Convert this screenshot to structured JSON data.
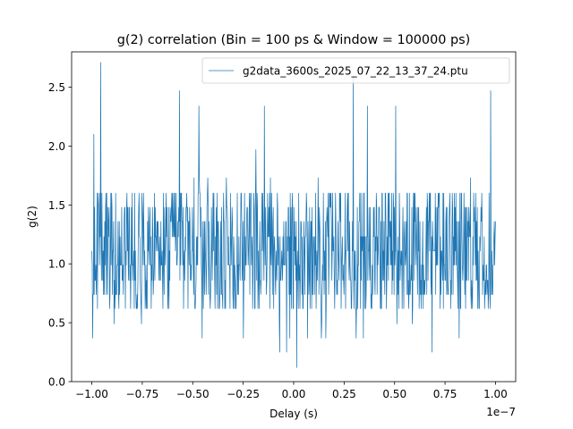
{
  "colors": {
    "series": "#1f77b4",
    "axis": "#000000",
    "background": "#ffffff",
    "legend_border": "#cccccc"
  },
  "chart_data": {
    "type": "line",
    "title": "g(2) correlation (Bin = 100 ps & Window = 100000 ps)",
    "xlabel": "Delay (s)",
    "ylabel": "g(2)",
    "x_offset_label": "1e−7",
    "xlim": [
      -1.1,
      1.1
    ],
    "ylim": [
      0.0,
      2.8
    ],
    "x_ticks": [
      -1.0,
      -0.75,
      -0.5,
      -0.25,
      0.0,
      0.25,
      0.5,
      0.75,
      1.0
    ],
    "x_tick_labels": [
      "−1.00",
      "−0.75",
      "−0.50",
      "−0.25",
      "0.00",
      "0.25",
      "0.50",
      "0.75",
      "1.00"
    ],
    "y_ticks": [
      0.0,
      0.5,
      1.0,
      1.5,
      2.0,
      2.5
    ],
    "y_tick_labels": [
      "0.0",
      "0.5",
      "1.0",
      "1.5",
      "2.0",
      "2.5"
    ],
    "grid": false,
    "legend": {
      "placement": "top-right",
      "entries": [
        "g2data_3600s_2025_07_22_13_37_24.ptu"
      ]
    },
    "series": [
      {
        "name": "g2data_3600s_2025_07_22_13_37_24.ptu",
        "x_range": [
          -1.0,
          1.0
        ],
        "n_points": 1000,
        "levels": [
          0.37,
          0.49,
          0.62,
          0.74,
          0.86,
          0.99,
          1.11,
          1.23,
          1.36,
          1.48,
          1.6,
          1.73,
          1.85,
          1.97,
          2.1,
          2.22,
          2.34,
          2.47,
          2.59,
          2.71
        ],
        "typical_range": [
          0.62,
          1.6
        ],
        "mean": 1.1,
        "notable_points": [
          {
            "x": -0.955,
            "y": 2.71
          },
          {
            "x": -0.99,
            "y": 2.1
          },
          {
            "x": -0.565,
            "y": 2.47
          },
          {
            "x": -0.47,
            "y": 2.34
          },
          {
            "x": -0.145,
            "y": 2.34
          },
          {
            "x": 0.295,
            "y": 2.59
          },
          {
            "x": 0.365,
            "y": 2.34
          },
          {
            "x": 0.505,
            "y": 2.34
          },
          {
            "x": 0.975,
            "y": 2.47
          },
          {
            "x": -0.995,
            "y": 0.37
          },
          {
            "x": -0.07,
            "y": 0.25
          },
          {
            "x": -0.035,
            "y": 0.25
          },
          {
            "x": 0.015,
            "y": 0.12
          },
          {
            "x": 0.345,
            "y": 0.37
          },
          {
            "x": 0.685,
            "y": 0.25
          },
          {
            "x": 0.82,
            "y": 0.37
          }
        ]
      }
    ]
  }
}
